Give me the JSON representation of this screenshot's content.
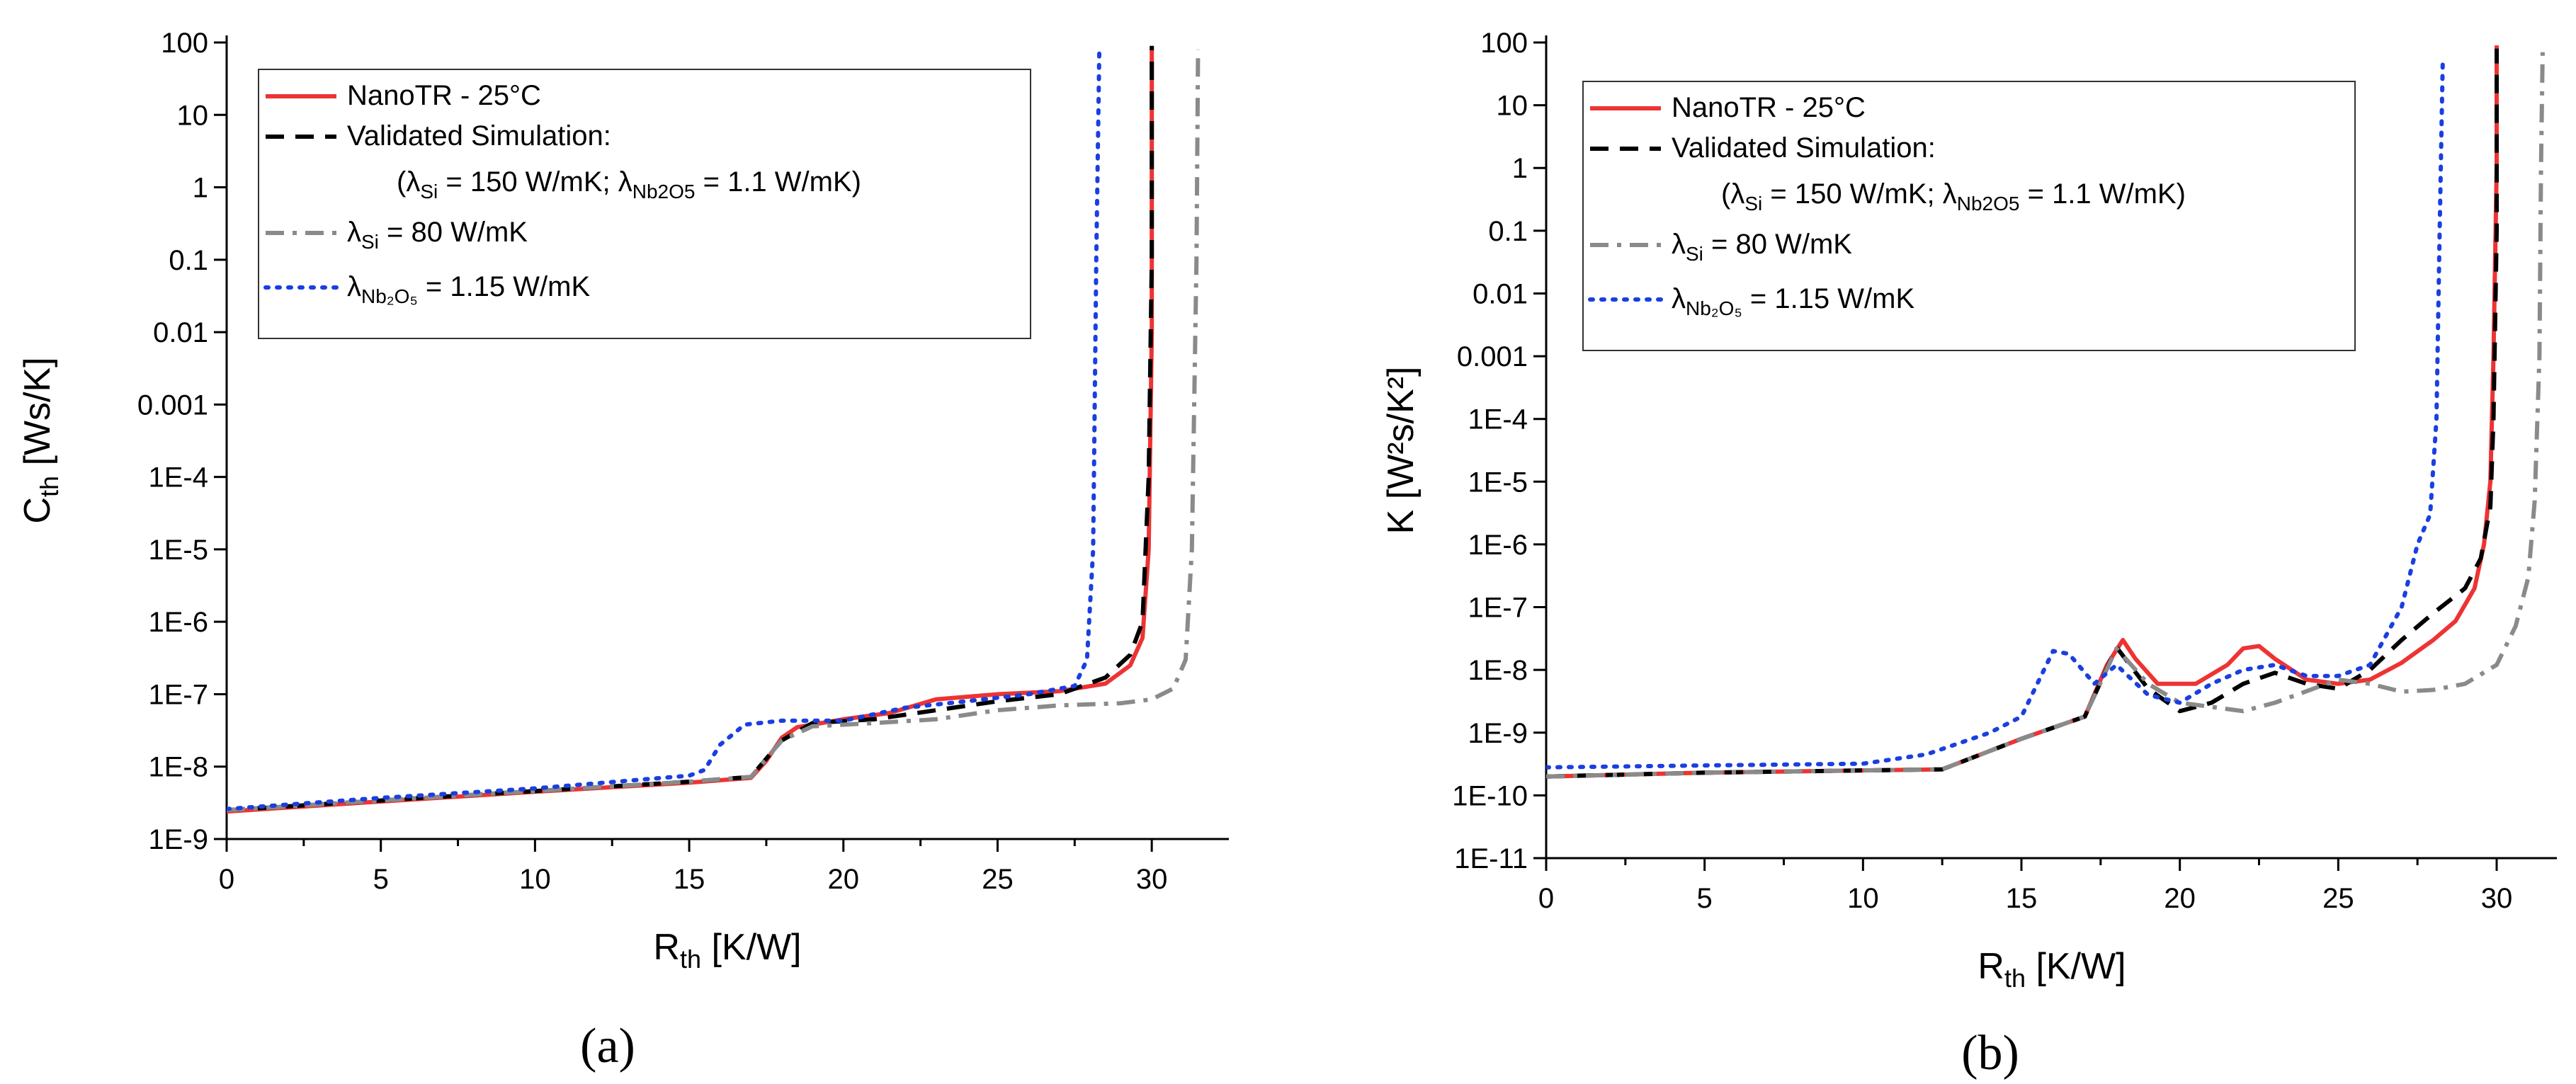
{
  "chart_data": [
    {
      "type": "line",
      "panel_label": "(a)",
      "xlabel": {
        "main": "R",
        "sub": "th",
        "unit": " [K/W]"
      },
      "ylabel": {
        "main": "C",
        "sub": "th",
        "unit": " [Ws/K]"
      },
      "yscale": "log",
      "xlim": [
        0,
        32.5
      ],
      "ylim_exp": [
        -9,
        2
      ],
      "xticks": [
        0,
        5,
        10,
        15,
        20,
        25,
        30
      ],
      "xtick_labels": [
        "0",
        "5",
        "10",
        "15",
        "20",
        "25",
        "30"
      ],
      "yticks_exp": [
        -9,
        -8,
        -7,
        -6,
        -5,
        -4,
        -3,
        -2,
        -1,
        0,
        1,
        2
      ],
      "ytick_labels": [
        "1E-9",
        "1E-8",
        "1E-7",
        "1E-6",
        "1E-5",
        "1E-4",
        "0.001",
        "0.01",
        "0.1",
        "1",
        "10",
        "100"
      ],
      "legend_position": "top-left",
      "legend": [
        {
          "line": "NanoTR - 25°C"
        },
        {
          "line": "Validated Simulation:"
        },
        {
          "detail": {
            "pre": "(λ",
            "sub1": "Si",
            "mid": " = 150 W/mK; λ",
            "sub2": "Nb2O5",
            "post": " = 1.1 W/mK)"
          }
        },
        {
          "line": {
            "pre": "λ",
            "sub": "Si",
            "post": " = 80 W/mK"
          }
        },
        {
          "line": {
            "pre": "λ",
            "sub": "Nb₂O₅",
            "post": " = 1.15 W/mK"
          }
        }
      ],
      "series": [
        {
          "name": "NanoTR - 25°C",
          "color": "#ee3333",
          "dash": "solid",
          "points": [
            [
              0,
              2.4e-09
            ],
            [
              5,
              3.3e-09
            ],
            [
              10,
              4.5e-09
            ],
            [
              15,
              6e-09
            ],
            [
              17,
              7e-09
            ],
            [
              17.5,
              1.2e-08
            ],
            [
              18,
              2.5e-08
            ],
            [
              18.5,
              3.5e-08
            ],
            [
              20,
              4.5e-08
            ],
            [
              21.5,
              5.5e-08
            ],
            [
              23,
              8.5e-08
            ],
            [
              25,
              1e-07
            ],
            [
              27,
              1.1e-07
            ],
            [
              28.5,
              1.4e-07
            ],
            [
              29.3,
              2.5e-07
            ],
            [
              29.7,
              6e-07
            ],
            [
              29.9,
              1e-05
            ],
            [
              30,
              0.01
            ],
            [
              30,
              80
            ]
          ]
        },
        {
          "name": "Validated Simulation",
          "color": "#000000",
          "dash": "dash",
          "points": [
            [
              0,
              2.5e-09
            ],
            [
              5,
              3.4e-09
            ],
            [
              10,
              4.6e-09
            ],
            [
              15,
              6.2e-09
            ],
            [
              17,
              7.2e-09
            ],
            [
              18,
              2.3e-08
            ],
            [
              19,
              4e-08
            ],
            [
              21,
              4.5e-08
            ],
            [
              23,
              6e-08
            ],
            [
              25,
              8e-08
            ],
            [
              27,
              1e-07
            ],
            [
              28.5,
              1.7e-07
            ],
            [
              29.3,
              3.5e-07
            ],
            [
              29.7,
              1e-06
            ],
            [
              29.9,
              0.0001
            ],
            [
              30,
              0.1
            ],
            [
              30,
              90
            ]
          ]
        },
        {
          "name": "λSi = 80 W/mK",
          "color": "#8a8a8a",
          "dash": "dashdot",
          "points": [
            [
              0,
              2.5e-09
            ],
            [
              5,
              3.4e-09
            ],
            [
              10,
              4.6e-09
            ],
            [
              15,
              6.2e-09
            ],
            [
              17,
              7.2e-09
            ],
            [
              18,
              2.3e-08
            ],
            [
              19,
              3.6e-08
            ],
            [
              21,
              4e-08
            ],
            [
              23,
              4.5e-08
            ],
            [
              25,
              6e-08
            ],
            [
              27,
              7e-08
            ],
            [
              29,
              7.5e-08
            ],
            [
              30,
              8.5e-08
            ],
            [
              30.7,
              1.2e-07
            ],
            [
              31.1,
              3e-07
            ],
            [
              31.3,
              1e-05
            ],
            [
              31.45,
              0.1
            ],
            [
              31.5,
              80
            ]
          ]
        },
        {
          "name": "λNb2O5 = 1.15 W/mK",
          "color": "#1a3fe0",
          "dash": "dot",
          "points": [
            [
              0,
              2.6e-09
            ],
            [
              5,
              3.7e-09
            ],
            [
              10,
              5e-09
            ],
            [
              15,
              7.5e-09
            ],
            [
              15.5,
              9e-09
            ],
            [
              16,
              2e-08
            ],
            [
              16.8,
              3.8e-08
            ],
            [
              18,
              4.3e-08
            ],
            [
              20,
              4.3e-08
            ],
            [
              22,
              6.5e-08
            ],
            [
              24,
              8e-08
            ],
            [
              26,
              1e-07
            ],
            [
              27.5,
              1.3e-07
            ],
            [
              27.9,
              3e-07
            ],
            [
              28.1,
              1e-05
            ],
            [
              28.2,
              0.1
            ],
            [
              28.3,
              80
            ]
          ]
        }
      ]
    },
    {
      "type": "line",
      "panel_label": "(b)",
      "xlabel": {
        "main": "R",
        "sub": "th",
        "unit": " [K/W]"
      },
      "ylabel": {
        "main": "K [W²s/K²]",
        "sub": "",
        "unit": ""
      },
      "yscale": "log",
      "xlim": [
        0,
        31.9
      ],
      "ylim_exp": [
        -11,
        2
      ],
      "xticks": [
        0,
        5,
        10,
        15,
        20,
        25,
        30
      ],
      "xtick_labels": [
        "0",
        "5",
        "10",
        "15",
        "20",
        "25",
        "30"
      ],
      "yticks_exp": [
        -11,
        -10,
        -9,
        -8,
        -7,
        -6,
        -5,
        -4,
        -3,
        -2,
        -1,
        0,
        1,
        2
      ],
      "ytick_labels": [
        "1E-11",
        "1E-10",
        "1E-9",
        "1E-8",
        "1E-7",
        "1E-6",
        "1E-5",
        "1E-4",
        "0.001",
        "0.01",
        "0.1",
        "1",
        "10",
        "100"
      ],
      "legend_position": "top-left",
      "legend": [
        {
          "line": "NanoTR - 25°C"
        },
        {
          "line": "Validated Simulation:"
        },
        {
          "detail": {
            "pre": "(λ",
            "sub1": "Si",
            "mid": " = 150 W/mK; λ",
            "sub2": "Nb2O5",
            "post": " = 1.1 W/mK)"
          }
        },
        {
          "line": {
            "pre": "λ",
            "sub": "Si",
            "post": " = 80 W/mK"
          }
        },
        {
          "line": {
            "pre": "λ",
            "sub": "Nb₂O₅",
            "post": " = 1.15 W/mK"
          }
        }
      ],
      "series": [
        {
          "name": "NanoTR - 25°C",
          "color": "#ee3333",
          "dash": "solid",
          "points": [
            [
              0,
              2e-10
            ],
            [
              5,
              2.3e-10
            ],
            [
              10,
              2.5e-10
            ],
            [
              12.5,
              2.6e-10
            ],
            [
              15,
              8e-10
            ],
            [
              17,
              1.8e-09
            ],
            [
              17.7,
              1.2e-08
            ],
            [
              18.2,
              3e-08
            ],
            [
              18.6,
              1.5e-08
            ],
            [
              19.3,
              6e-09
            ],
            [
              20.5,
              6e-09
            ],
            [
              21.5,
              1.2e-08
            ],
            [
              22,
              2.2e-08
            ],
            [
              22.5,
              2.4e-08
            ],
            [
              23,
              1.5e-08
            ],
            [
              24,
              7e-09
            ],
            [
              25,
              6e-09
            ],
            [
              26,
              7e-09
            ],
            [
              27,
              1.3e-08
            ],
            [
              28,
              3e-08
            ],
            [
              28.7,
              6e-08
            ],
            [
              29.3,
              2e-07
            ],
            [
              29.6,
              1e-06
            ],
            [
              29.8,
              1e-05
            ],
            [
              29.9,
              0.001
            ],
            [
              30,
              1
            ],
            [
              30,
              90
            ]
          ]
        },
        {
          "name": "Validated Simulation",
          "color": "#000000",
          "dash": "dash",
          "points": [
            [
              0,
              2e-10
            ],
            [
              5,
              2.3e-10
            ],
            [
              10,
              2.5e-10
            ],
            [
              12.5,
              2.6e-10
            ],
            [
              15,
              8e-10
            ],
            [
              17,
              1.8e-09
            ],
            [
              18,
              2.3e-08
            ],
            [
              19,
              5e-09
            ],
            [
              20,
              2.2e-09
            ],
            [
              21,
              3e-09
            ],
            [
              22,
              6e-09
            ],
            [
              23,
              9e-09
            ],
            [
              24,
              6e-09
            ],
            [
              25,
              5e-09
            ],
            [
              26,
              1e-08
            ],
            [
              27,
              3e-08
            ],
            [
              28,
              8e-08
            ],
            [
              29,
              2e-07
            ],
            [
              29.5,
              6e-07
            ],
            [
              29.8,
              4e-06
            ],
            [
              29.9,
              0.0001
            ],
            [
              30,
              0.1
            ],
            [
              30,
              80
            ]
          ]
        },
        {
          "name": "λSi = 80 W/mK",
          "color": "#8a8a8a",
          "dash": "dashdot",
          "points": [
            [
              0,
              2e-10
            ],
            [
              5,
              2.3e-10
            ],
            [
              10,
              2.5e-10
            ],
            [
              12.5,
              2.6e-10
            ],
            [
              15,
              8e-10
            ],
            [
              17,
              1.8e-09
            ],
            [
              18,
              2.2e-08
            ],
            [
              19,
              6e-09
            ],
            [
              20,
              3e-09
            ],
            [
              22,
              2.2e-09
            ],
            [
              23,
              3e-09
            ],
            [
              25,
              7e-09
            ],
            [
              26,
              6e-09
            ],
            [
              27,
              4.5e-09
            ],
            [
              28,
              4.8e-09
            ],
            [
              29,
              6e-09
            ],
            [
              30,
              1.2e-08
            ],
            [
              30.6,
              5e-08
            ],
            [
              31,
              3e-07
            ],
            [
              31.2,
              5e-06
            ],
            [
              31.35,
              0.001
            ],
            [
              31.4,
              1
            ],
            [
              31.45,
              70
            ]
          ]
        },
        {
          "name": "λNb2O5 = 1.15 W/mK",
          "color": "#1a3fe0",
          "dash": "dot",
          "points": [
            [
              0,
              2.8e-10
            ],
            [
              5,
              3e-10
            ],
            [
              10,
              3.2e-10
            ],
            [
              12,
              4.5e-10
            ],
            [
              14,
              1e-09
            ],
            [
              15,
              1.8e-09
            ],
            [
              16,
              2e-08
            ],
            [
              16.5,
              1.8e-08
            ],
            [
              17.3,
              6e-09
            ],
            [
              18,
              1.2e-08
            ],
            [
              19,
              4e-09
            ],
            [
              20,
              3e-09
            ],
            [
              21,
              6e-09
            ],
            [
              22,
              1e-08
            ],
            [
              23,
              1.2e-08
            ],
            [
              24,
              8e-09
            ],
            [
              25,
              8e-09
            ],
            [
              26,
              1.2e-08
            ],
            [
              27,
              1e-07
            ],
            [
              27.5,
              1e-06
            ],
            [
              27.9,
              3e-06
            ],
            [
              28.1,
              0.0001
            ],
            [
              28.2,
              0.1
            ],
            [
              28.3,
              60
            ]
          ]
        }
      ]
    }
  ]
}
